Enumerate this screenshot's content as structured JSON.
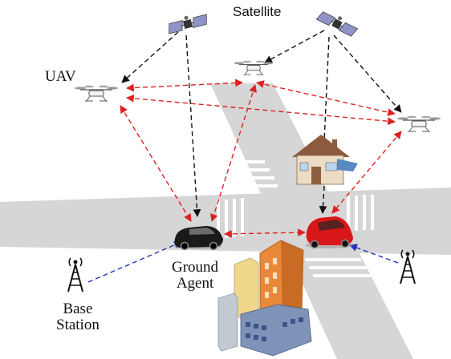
{
  "labels": {
    "satellite": "Satellite",
    "uav": "UAV",
    "ground_agent_line1": "Ground",
    "ground_agent_line2": "Agent",
    "base_station_line1": "Base",
    "base_station_line2": "Station"
  },
  "colors": {
    "satellite_link": "#111111",
    "uav_link": "#e02020",
    "base_station_link": "#2233bb",
    "road": "#d6d6d6",
    "car_dark": "#1a1a1a",
    "car_red": "#d81818",
    "building_orange": "#e8893a",
    "building_blue": "#7f93b8"
  },
  "icons": [
    "satellite-icon",
    "uav-icon",
    "car-icon",
    "house-icon",
    "building-icon",
    "antenna-icon"
  ]
}
